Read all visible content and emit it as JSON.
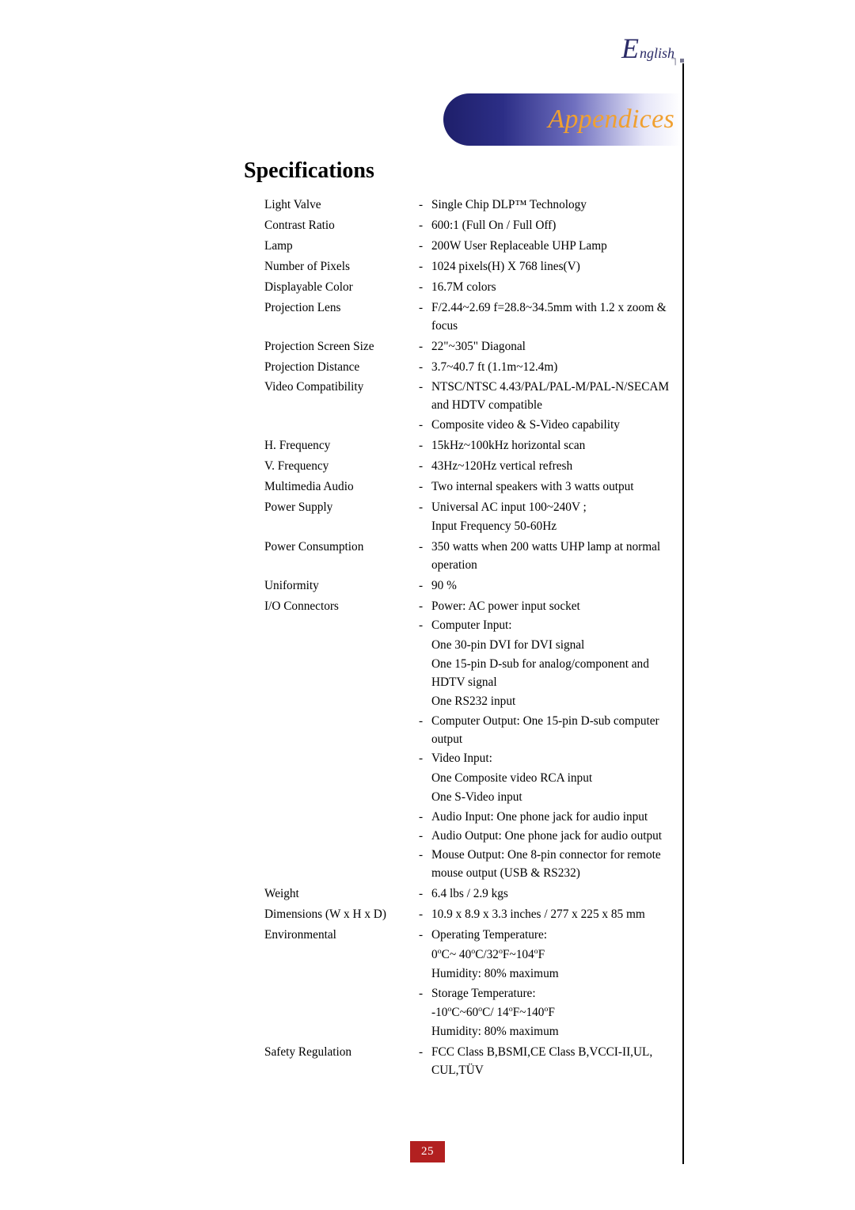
{
  "header": {
    "lang_big": "E",
    "lang_small": "nglish"
  },
  "banner": {
    "text": "Appendices"
  },
  "section": {
    "title": "Specifications"
  },
  "page_number": "25",
  "specs": [
    {
      "label": "Light Valve",
      "values": [
        [
          "Single Chip DLP™ Technology"
        ]
      ]
    },
    {
      "label": "Contrast Ratio",
      "values": [
        [
          "600:1 (Full On / Full Off)"
        ]
      ]
    },
    {
      "label": "Lamp",
      "values": [
        [
          "200W User Replaceable UHP Lamp"
        ]
      ]
    },
    {
      "label": "Number of Pixels",
      "values": [
        [
          "1024 pixels(H) X 768 lines(V)"
        ]
      ]
    },
    {
      "label": "Displayable Color",
      "values": [
        [
          "16.7M colors"
        ]
      ]
    },
    {
      "label": "Projection Lens",
      "values": [
        [
          "F/2.44~2.69  f=28.8~34.5mm with 1.2 x zoom & focus"
        ]
      ]
    },
    {
      "label": "Projection Screen Size",
      "values": [
        [
          "22\"~305\" Diagonal"
        ]
      ]
    },
    {
      "label": "Projection Distance",
      "values": [
        [
          "3.7~40.7 ft (1.1m~12.4m)"
        ]
      ]
    },
    {
      "label": "Video Compatibility",
      "values": [
        [
          "NTSC/NTSC 4.43/PAL/PAL-M/PAL-N/SECAM and HDTV compatible"
        ],
        [
          "Composite video & S-Video capability"
        ]
      ]
    },
    {
      "label": "H. Frequency",
      "values": [
        [
          "15kHz~100kHz horizontal scan"
        ]
      ]
    },
    {
      "label": "V. Frequency",
      "values": [
        [
          "43Hz~120Hz vertical refresh"
        ]
      ]
    },
    {
      "label": "Multimedia Audio",
      "values": [
        [
          "Two internal speakers with 3 watts output"
        ]
      ]
    },
    {
      "label": "Power Supply",
      "values": [
        [
          "Universal AC input 100~240V ;",
          "Input Frequency 50-60Hz"
        ]
      ]
    },
    {
      "label": "Power Consumption",
      "values": [
        [
          "350 watts when 200 watts UHP lamp at normal operation"
        ]
      ]
    },
    {
      "label": "Uniformity",
      "values": [
        [
          "90 %"
        ]
      ]
    },
    {
      "label": "I/O Connectors",
      "values": [
        [
          "Power: AC power input socket"
        ],
        [
          "Computer Input:",
          "One 30-pin DVI for DVI signal",
          "One 15-pin D-sub for analog/component and HDTV signal",
          "One RS232 input"
        ],
        [
          "Computer Output: One 15-pin D-sub computer output"
        ],
        [
          "Video Input:",
          "One Composite video RCA input",
          "One S-Video input"
        ],
        [
          "Audio Input: One phone jack for audio input"
        ],
        [
          "Audio Output: One phone jack for audio output"
        ],
        [
          "Mouse Output: One 8-pin connector for remote mouse output (USB & RS232)"
        ]
      ]
    },
    {
      "label": "Weight",
      "values": [
        [
          "6.4 lbs / 2.9 kgs"
        ]
      ]
    },
    {
      "label": "Dimensions (W x H x D)",
      "values": [
        [
          "10.9 x 8.9 x 3.3 inches / 277 x 225 x 85 mm"
        ]
      ]
    },
    {
      "label": "Environmental",
      "values": [
        [
          "Operating Temperature:",
          "0°C~ 40°C/32°F~104°F",
          "Humidity: 80% maximum"
        ],
        [
          "Storage Temperature:",
          "-10°C~60°C/ 14°F~140°F",
          "Humidity: 80% maximum"
        ]
      ]
    },
    {
      "label": "Safety Regulation",
      "values": [
        [
          "FCC Class B,BSMI,CE Class B,VCCI-II,UL, CUL,TÜV"
        ]
      ]
    }
  ]
}
